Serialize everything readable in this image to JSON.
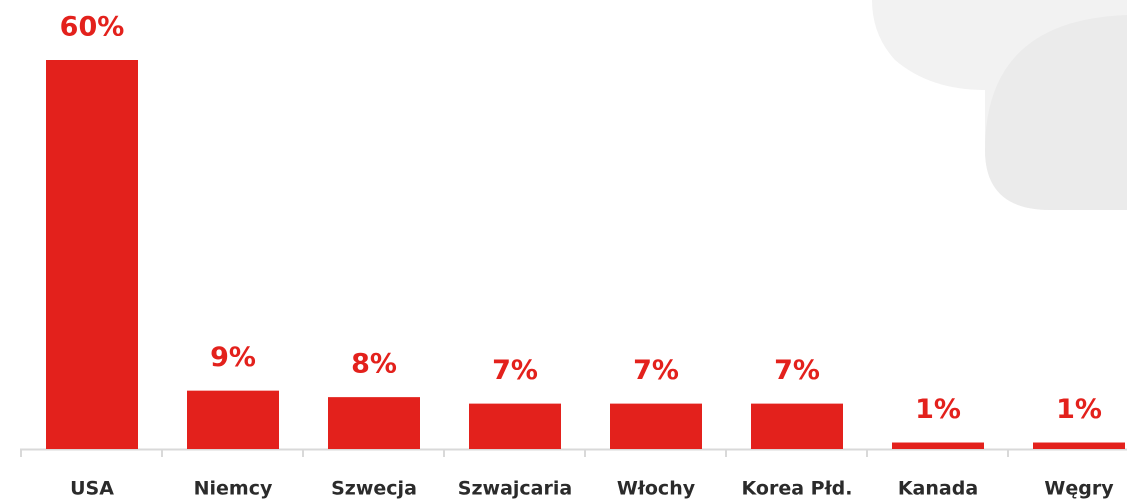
{
  "chart_data": {
    "type": "bar",
    "categories": [
      "USA",
      "Niemcy",
      "Szwecja",
      "Szwajcaria",
      "Włochy",
      "Korea Płd.",
      "Kanada",
      "Węgry"
    ],
    "values": [
      60,
      9,
      8,
      7,
      7,
      7,
      1,
      1
    ],
    "value_labels": [
      "60%",
      "9%",
      "8%",
      "7%",
      "7%",
      "7%",
      "1%",
      "1%"
    ],
    "color": "#e3211c",
    "ylim": [
      0,
      60
    ]
  }
}
